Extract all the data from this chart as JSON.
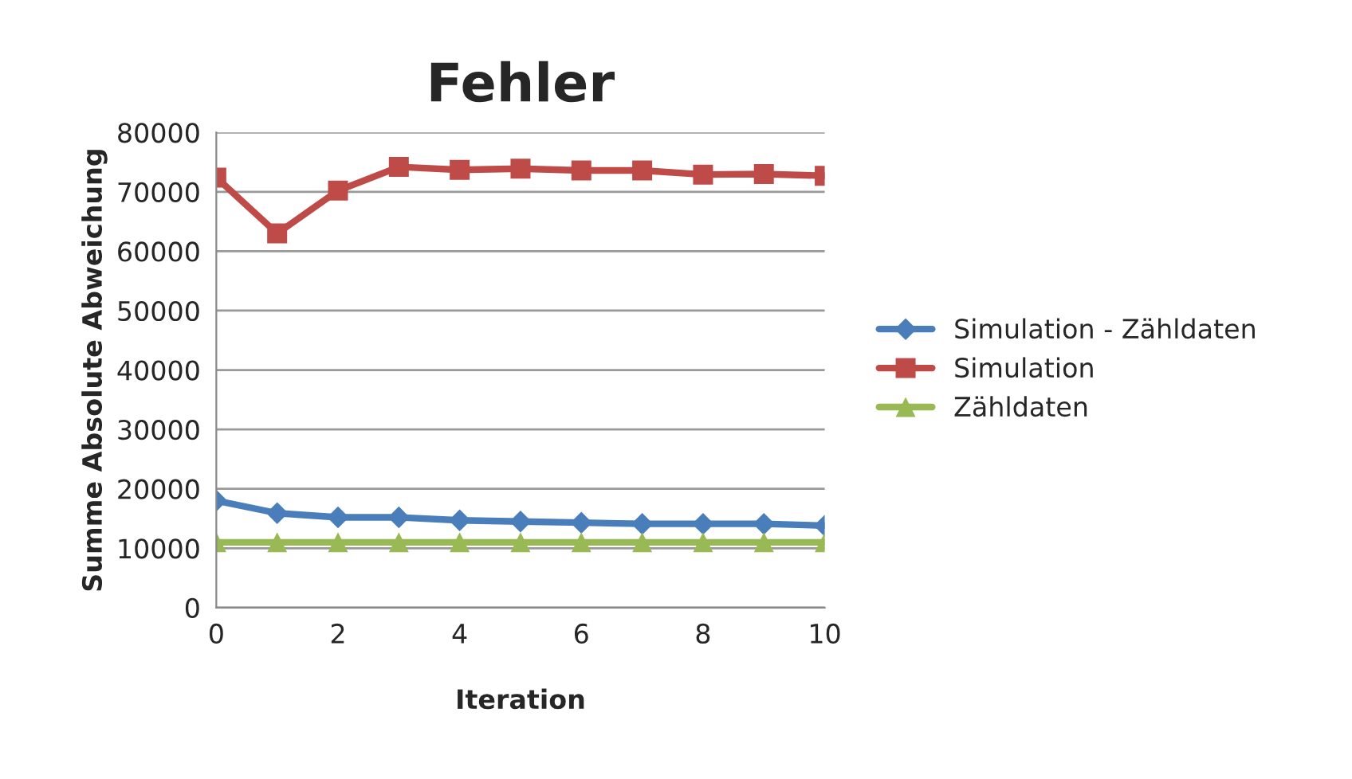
{
  "chart_data": {
    "type": "line",
    "title": "Fehler",
    "xlabel": "Iteration",
    "ylabel": "Summe Absolute Abweichung",
    "x": [
      0,
      1,
      2,
      3,
      4,
      5,
      6,
      7,
      8,
      9,
      10
    ],
    "series": [
      {
        "name": "Simulation - Zähldaten",
        "color": "#4a7ebb",
        "marker": "diamond",
        "values": [
          18000,
          15900,
          15200,
          15200,
          14700,
          14500,
          14300,
          14100,
          14100,
          14100,
          13800
        ]
      },
      {
        "name": "Simulation",
        "color": "#be4b48",
        "marker": "square",
        "values": [
          72400,
          63000,
          70200,
          74200,
          73700,
          73900,
          73600,
          73600,
          72900,
          73000,
          72700
        ]
      },
      {
        "name": "Zähldaten",
        "color": "#98b954",
        "marker": "triangle",
        "values": [
          11000,
          11000,
          11000,
          11000,
          11000,
          11000,
          11000,
          11000,
          11000,
          11000,
          11000
        ]
      }
    ],
    "xlim": [
      0,
      10
    ],
    "xticks": [
      0,
      2,
      4,
      6,
      8,
      10
    ],
    "ylim": [
      0,
      80000
    ],
    "yticks": [
      0,
      10000,
      20000,
      30000,
      40000,
      50000,
      60000,
      70000,
      80000
    ],
    "grid": "y",
    "legend": "right",
    "line_style": "solid"
  }
}
